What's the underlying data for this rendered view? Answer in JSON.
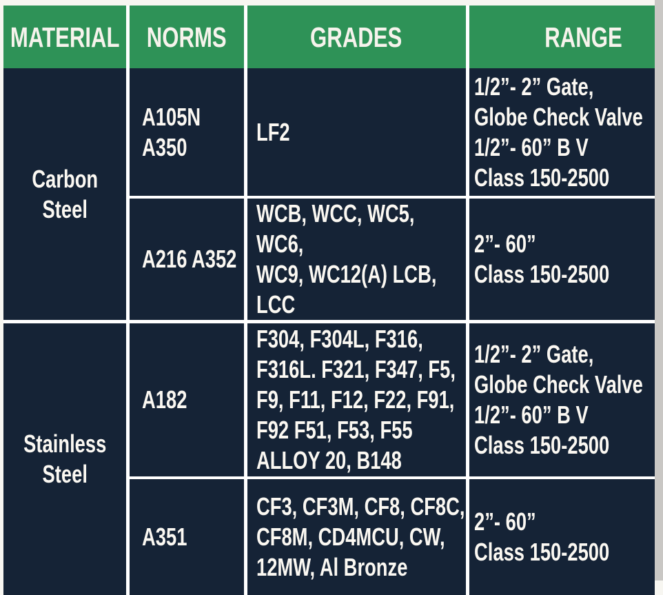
{
  "table": {
    "headers": [
      "MATERIAL",
      "NORMS",
      "GRADES",
      "RANGE"
    ],
    "groups": [
      {
        "material": "Carbon\nSteel",
        "rows": [
          {
            "norms": "A105N\nA350",
            "grades": "LF2",
            "range": "1/2”- 2” Gate,\nGlobe Check Valve\n1/2”- 60” B V\nClass 150-2500"
          },
          {
            "norms": "A216 A352",
            "grades": "WCB, WCC, WC5, WC6,\nWC9, WC12(A) LCB,\nLCC",
            "range": "2”- 60”\nClass 150-2500"
          }
        ]
      },
      {
        "material": "Stainless\nSteel",
        "rows": [
          {
            "norms": "A182",
            "grades": "F304, F304L, F316,\nF316L. F321, F347, F5,\nF9, F11, F12, F22, F91,\nF92 F51, F53, F55\nALLOY 20, B148",
            "range": "1/2”- 2” Gate,\nGlobe Check Valve\n1/2”- 60” B V\nClass 150-2500"
          },
          {
            "norms": "A351",
            "grades": "CF3, CF3M, CF8, CF8C,\nCF8M, CD4MCU, CW,\n12MW, Al Bronze",
            "range": "2”- 60”\nClass 150-2500"
          }
        ]
      }
    ],
    "colors": {
      "header_bg": "#2e9257",
      "cell_bg": "#152336",
      "grid_line": "#ffffff",
      "text": "#fbf8f2",
      "page_bg": "#f7f6f1",
      "right_strip": "#c9c7c4"
    }
  }
}
